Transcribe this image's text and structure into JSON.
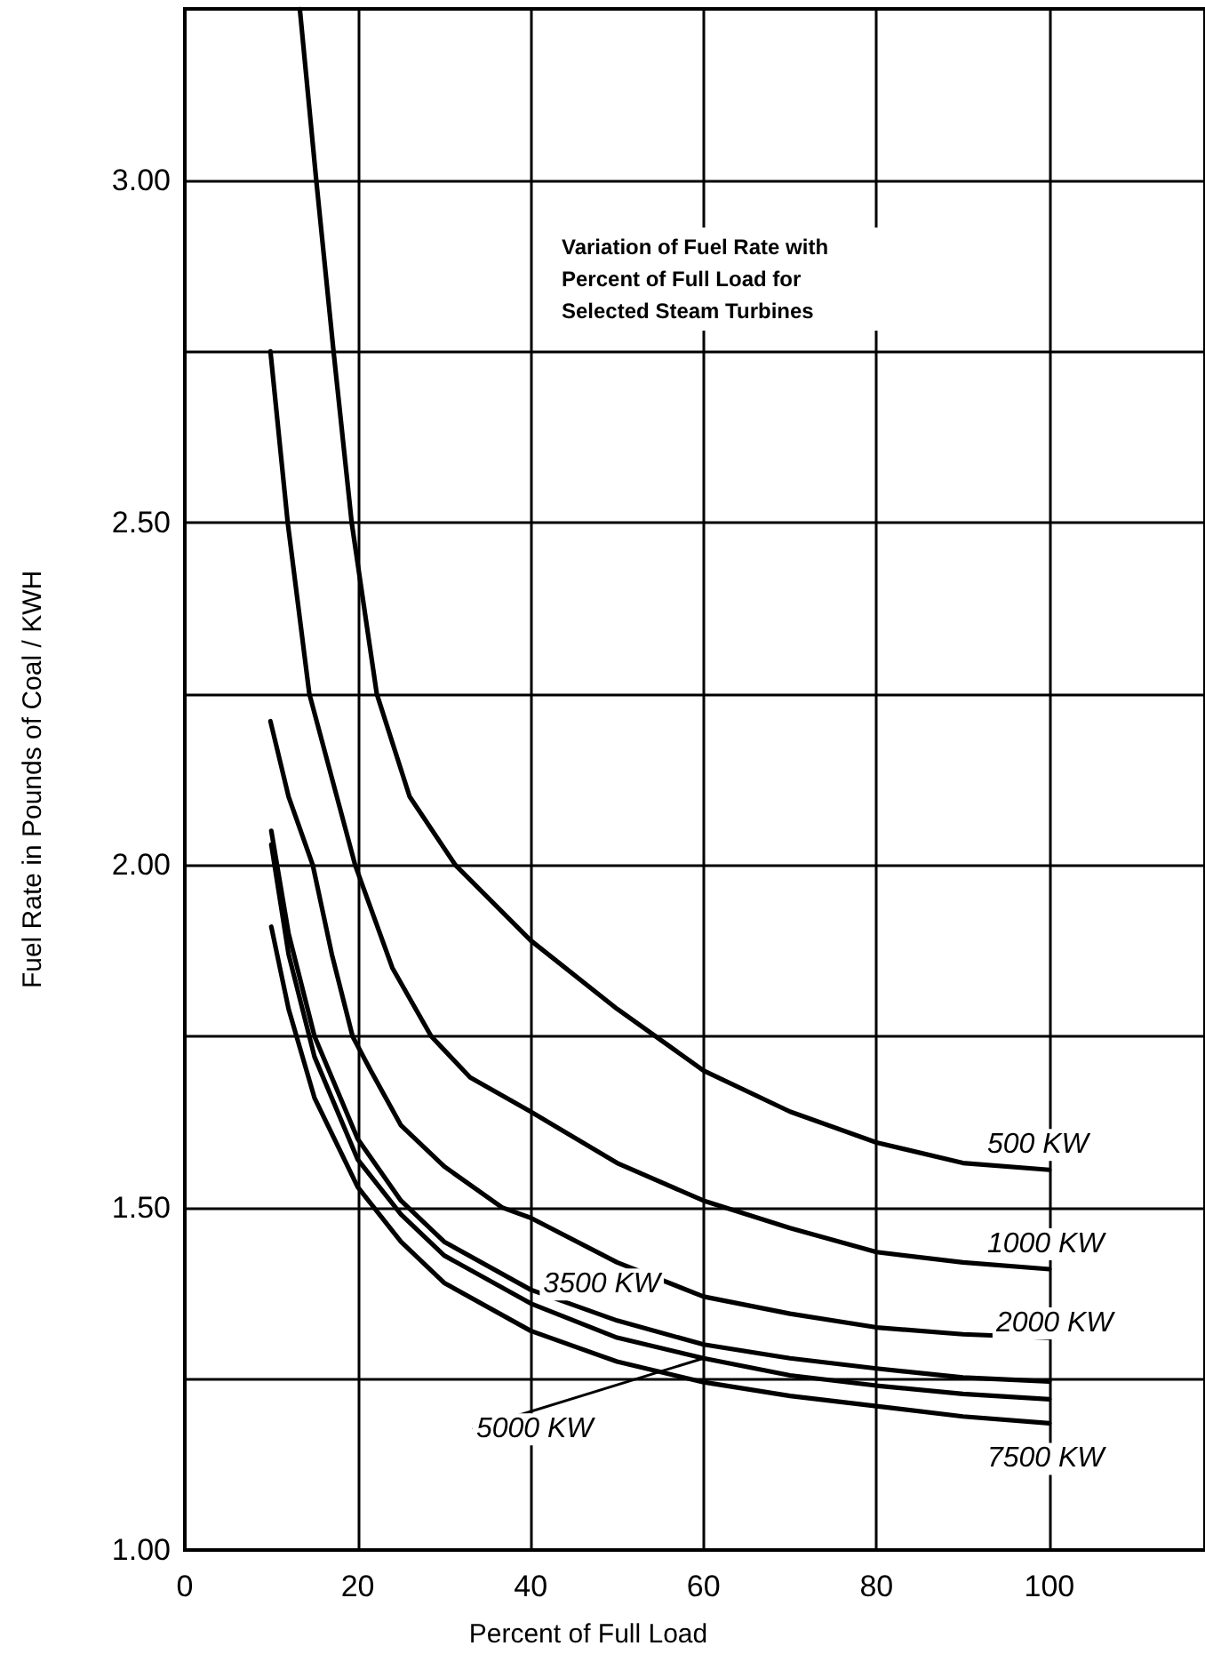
{
  "chart_data": {
    "type": "line",
    "title": "Variation of Fuel Rate with Percent of Full Load for Selected Steam Turbines",
    "xlabel": "Percent of Full Load",
    "ylabel": "Fuel Rate in Pounds of Coal / KWH",
    "xlim": [
      0,
      118
    ],
    "xticks": [
      0,
      20,
      40,
      60,
      80,
      100
    ],
    "ylim": [
      1,
      3.25
    ],
    "yticks": [
      {
        "value": 1,
        "label": "1.00"
      },
      {
        "value": 1.25,
        "label": null
      },
      {
        "value": 1.5,
        "label": "1.50"
      },
      {
        "value": 1.75,
        "label": null
      },
      {
        "value": 2,
        "label": "2.00"
      },
      {
        "value": 2.25,
        "label": null
      },
      {
        "value": 2.5,
        "label": "2.50"
      },
      {
        "value": 2.75,
        "label": null
      },
      {
        "value": 3,
        "label": "3.00"
      }
    ],
    "grid": true,
    "legend": false,
    "marker": "none",
    "line_style": "solid",
    "series": [
      {
        "name": "500 KW",
        "color": "#000000",
        "x": [
          13.3,
          15.2,
          17.2,
          19.3,
          22.2,
          26,
          31.3,
          40,
          50,
          60,
          70,
          80,
          90,
          100
        ],
        "values": [
          3.25,
          3.0,
          2.75,
          2.5,
          2.25,
          2.1,
          2.0,
          1.89,
          1.79,
          1.7,
          1.64,
          1.595,
          1.565,
          1.555
        ]
      },
      {
        "name": "1000 KW",
        "color": "#000000",
        "x": [
          9.9,
          11.9,
          14.4,
          19.7,
          24,
          28.5,
          33,
          40,
          50,
          60,
          70,
          80,
          90,
          100
        ],
        "values": [
          2.75,
          2.5,
          2.25,
          2.0,
          1.85,
          1.75,
          1.69,
          1.64,
          1.565,
          1.51,
          1.47,
          1.435,
          1.42,
          1.41
        ]
      },
      {
        "name": "2000 KW",
        "color": "#000000",
        "x": [
          9.9,
          12,
          14.8,
          17,
          19.4,
          21.5,
          25,
          30,
          36.7,
          40,
          50,
          60,
          70,
          80,
          90,
          100
        ],
        "values": [
          2.21,
          2.1,
          2.0,
          1.87,
          1.75,
          1.7,
          1.62,
          1.56,
          1.5,
          1.485,
          1.42,
          1.37,
          1.345,
          1.325,
          1.315,
          1.31
        ]
      },
      {
        "name": "3500 KW",
        "color": "#000000",
        "x": [
          10,
          12,
          15,
          20,
          25,
          30,
          40,
          50,
          60,
          70,
          80,
          90,
          100
        ],
        "values": [
          2.05,
          1.9,
          1.75,
          1.6,
          1.51,
          1.45,
          1.38,
          1.335,
          1.3,
          1.28,
          1.265,
          1.252,
          1.246
        ]
      },
      {
        "name": "5000 KW",
        "color": "#000000",
        "x": [
          10,
          12,
          15,
          20,
          25,
          30,
          40,
          50,
          60,
          70,
          80,
          90,
          100
        ],
        "values": [
          2.03,
          1.87,
          1.72,
          1.57,
          1.49,
          1.43,
          1.36,
          1.31,
          1.28,
          1.255,
          1.24,
          1.228,
          1.22
        ]
      },
      {
        "name": "7500 KW",
        "color": "#000000",
        "x": [
          10,
          12,
          15,
          20,
          25,
          30,
          40,
          50,
          60,
          70,
          80,
          90,
          100
        ],
        "values": [
          1.91,
          1.79,
          1.66,
          1.53,
          1.45,
          1.39,
          1.32,
          1.275,
          1.245,
          1.225,
          1.21,
          1.195,
          1.185
        ]
      }
    ]
  }
}
